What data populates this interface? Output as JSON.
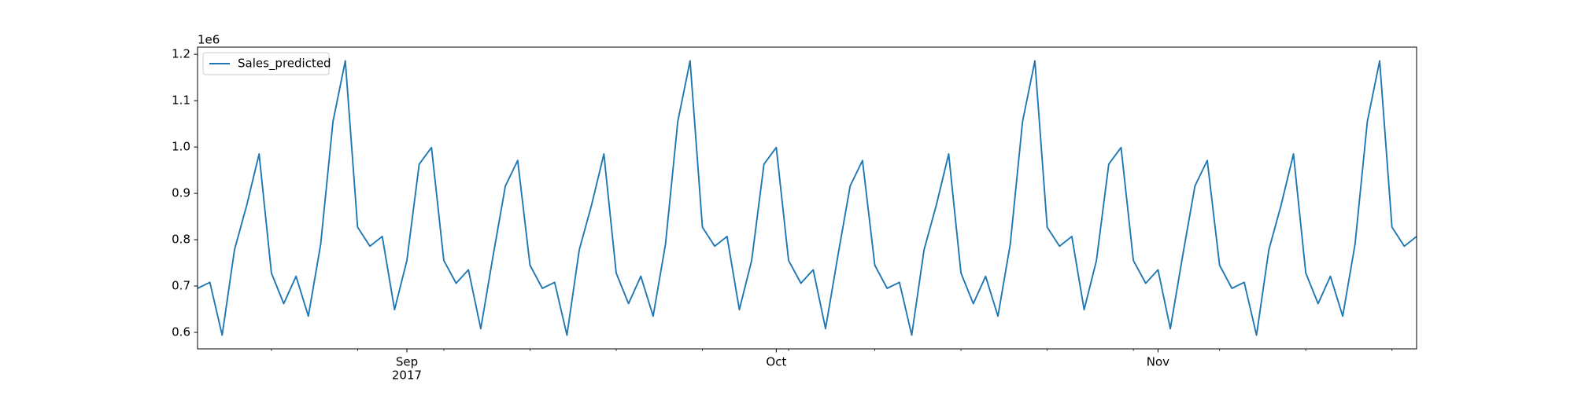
{
  "chart_data": {
    "type": "line",
    "y_offset_text": "1e6",
    "x": [
      "2017-08-15",
      "2017-08-16",
      "2017-08-17",
      "2017-08-18",
      "2017-08-19",
      "2017-08-20",
      "2017-08-21",
      "2017-08-22",
      "2017-08-23",
      "2017-08-24",
      "2017-08-25",
      "2017-08-26",
      "2017-08-27",
      "2017-08-28",
      "2017-08-29",
      "2017-08-30",
      "2017-08-31",
      "2017-09-01",
      "2017-09-02",
      "2017-09-03",
      "2017-09-04",
      "2017-09-05",
      "2017-09-06",
      "2017-09-07",
      "2017-09-08",
      "2017-09-09",
      "2017-09-10",
      "2017-09-11",
      "2017-09-12",
      "2017-09-13",
      "2017-09-14",
      "2017-09-15",
      "2017-09-16",
      "2017-09-17",
      "2017-09-18",
      "2017-09-19",
      "2017-09-20",
      "2017-09-21",
      "2017-09-22",
      "2017-09-23",
      "2017-09-24",
      "2017-09-25",
      "2017-09-26",
      "2017-09-27",
      "2017-09-28",
      "2017-09-29",
      "2017-09-30",
      "2017-10-01",
      "2017-10-02",
      "2017-10-03",
      "2017-10-04",
      "2017-10-05",
      "2017-10-06",
      "2017-10-07",
      "2017-10-08",
      "2017-10-09",
      "2017-10-10",
      "2017-10-11",
      "2017-10-12",
      "2017-10-13",
      "2017-10-14",
      "2017-10-15",
      "2017-10-16",
      "2017-10-17",
      "2017-10-18",
      "2017-10-19",
      "2017-10-20",
      "2017-10-21",
      "2017-10-22",
      "2017-10-23",
      "2017-10-24",
      "2017-10-25",
      "2017-10-26",
      "2017-10-27",
      "2017-10-28",
      "2017-10-29",
      "2017-10-30",
      "2017-10-31",
      "2017-11-01",
      "2017-11-02",
      "2017-11-03",
      "2017-11-04",
      "2017-11-05",
      "2017-11-06",
      "2017-11-07",
      "2017-11-08",
      "2017-11-09",
      "2017-11-10",
      "2017-11-11",
      "2017-11-12",
      "2017-11-13",
      "2017-11-14",
      "2017-11-15",
      "2017-11-16",
      "2017-11-17",
      "2017-11-18",
      "2017-11-19",
      "2017-11-20",
      "2017-11-21",
      "2017-11-22"
    ],
    "series": [
      {
        "name": "Sales_predicted",
        "color": "#1f77b4",
        "values": [
          0.695,
          0.708,
          0.594,
          0.778,
          0.875,
          0.985,
          0.728,
          0.662,
          0.721,
          0.635,
          0.79,
          1.055,
          1.186,
          0.827,
          0.786,
          0.807,
          0.649,
          0.755,
          0.963,
          0.999,
          0.755,
          0.706,
          0.735,
          0.608,
          0.765,
          0.916,
          0.971,
          0.745,
          0.695,
          0.708,
          0.594,
          0.778,
          0.875,
          0.985,
          0.728,
          0.662,
          0.721,
          0.635,
          0.79,
          1.055,
          1.186,
          0.827,
          0.786,
          0.807,
          0.649,
          0.755,
          0.963,
          0.999,
          0.755,
          0.706,
          0.735,
          0.608,
          0.765,
          0.916,
          0.971,
          0.745,
          0.695,
          0.708,
          0.594,
          0.778,
          0.875,
          0.985,
          0.728,
          0.662,
          0.721,
          0.635,
          0.79,
          1.055,
          1.186,
          0.827,
          0.786,
          0.807,
          0.649,
          0.755,
          0.963,
          0.999,
          0.755,
          0.706,
          0.735,
          0.608,
          0.765,
          0.916,
          0.971,
          0.745,
          0.695,
          0.708,
          0.594,
          0.778,
          0.875,
          0.985,
          0.728,
          0.662,
          0.721,
          0.635,
          0.79,
          1.055,
          1.186,
          0.827,
          0.786,
          0.807
        ]
      }
    ],
    "xlim": [
      "2017-08-15",
      "2017-11-22"
    ],
    "xticks": [
      {
        "value": "2017-09-01",
        "label": [
          "Sep",
          "2017"
        ]
      },
      {
        "value": "2017-10-01",
        "label": [
          "Oct"
        ]
      },
      {
        "value": "2017-11-01",
        "label": [
          "Nov"
        ]
      }
    ],
    "xminor_ticks": [
      "2017-08-21",
      "2017-08-28",
      "2017-09-04",
      "2017-09-11",
      "2017-09-18",
      "2017-09-25",
      "2017-10-02",
      "2017-10-09",
      "2017-10-16",
      "2017-10-23",
      "2017-10-30",
      "2017-11-06",
      "2017-11-13",
      "2017-11-20"
    ],
    "ylim": [
      0.5644,
      1.2156
    ],
    "yticks": [
      0.6,
      0.7,
      0.8,
      0.9,
      {
        "value": 1,
        "label": "1.0"
      },
      1.1,
      1.2
    ],
    "legend": "upper left",
    "grid": false
  }
}
